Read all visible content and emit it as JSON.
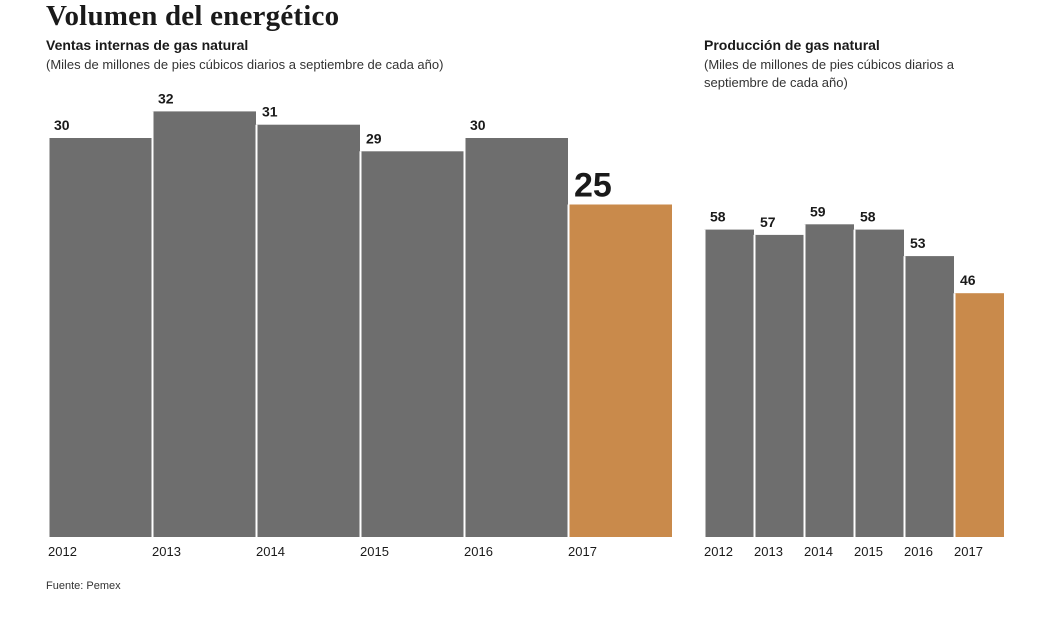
{
  "title": "Volumen del energético",
  "source": "Fuente: Pemex",
  "colors": {
    "gray": "#6e6e6e",
    "highlight": "#c98a4b",
    "text": "#1a1a1a"
  },
  "chart_data": [
    {
      "type": "bar",
      "title": "Ventas internas de gas natural",
      "subtitle": "(Miles de millones de pies cúbicos diarios a septiembre de cada año)",
      "categories": [
        "2012",
        "2013",
        "2014",
        "2015",
        "2016",
        "2017"
      ],
      "values": [
        30,
        32,
        31,
        29,
        30,
        25
      ],
      "highlight_index": 5
    },
    {
      "type": "bar",
      "title": "Producción de gas natural",
      "subtitle": "(Miles de millones de pies cúbicos diarios a septiembre de cada año)",
      "categories": [
        "2012",
        "2013",
        "2014",
        "2015",
        "2016",
        "2017"
      ],
      "values": [
        58,
        57,
        59,
        58,
        53,
        46
      ],
      "highlight_index": 5
    }
  ]
}
